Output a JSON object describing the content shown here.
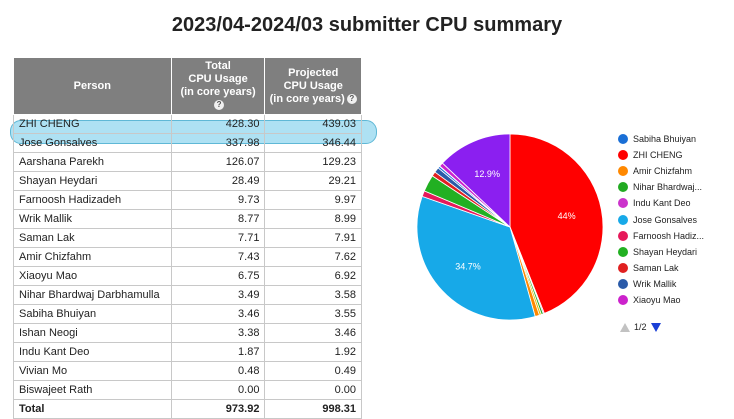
{
  "title": "2023/04-2024/03 submitter CPU summary",
  "table": {
    "headers": {
      "person": "Person",
      "total": [
        "Total",
        "CPU Usage",
        "(in core years)"
      ],
      "projected": [
        "Projected",
        "CPU Usage",
        "(in core years)"
      ]
    },
    "rows": [
      {
        "person": "ZHI CHENG",
        "total": "428.30",
        "projected": "439.03"
      },
      {
        "person": "Jose Gonsalves",
        "total": "337.98",
        "projected": "346.44"
      },
      {
        "person": "Aarshana Parekh",
        "total": "126.07",
        "projected": "129.23"
      },
      {
        "person": "Shayan Heydari",
        "total": "28.49",
        "projected": "29.21"
      },
      {
        "person": "Farnoosh Hadizadeh",
        "total": "9.73",
        "projected": "9.97"
      },
      {
        "person": "Wrik Mallik",
        "total": "8.77",
        "projected": "8.99"
      },
      {
        "person": "Saman Lak",
        "total": "7.71",
        "projected": "7.91"
      },
      {
        "person": "Amir Chizfahm",
        "total": "7.43",
        "projected": "7.62"
      },
      {
        "person": "Xiaoyu Mao",
        "total": "6.75",
        "projected": "6.92"
      },
      {
        "person": "Nihar Bhardwaj Darbhamulla",
        "total": "3.49",
        "projected": "3.58"
      },
      {
        "person": "Sabiha Bhuiyan",
        "total": "3.46",
        "projected": "3.55"
      },
      {
        "person": "Ishan Neogi",
        "total": "3.38",
        "projected": "3.46"
      },
      {
        "person": "Indu Kant Deo",
        "total": "1.87",
        "projected": "1.92"
      },
      {
        "person": "Vivian Mo",
        "total": "0.48",
        "projected": "0.49"
      },
      {
        "person": "Biswajeet Rath",
        "total": "0.00",
        "projected": "0.00"
      }
    ],
    "total_row": {
      "person": "Total",
      "total": "973.92",
      "projected": "998.31"
    },
    "highlighted_row": "Jose Gonsalves"
  },
  "chart_data": {
    "type": "pie",
    "slices": [
      {
        "name": "ZHI CHENG",
        "value": 428.3,
        "color": "#ff0000",
        "label": "44%"
      },
      {
        "name": "Indu Kant Deo",
        "value": 1.87,
        "color": "#cc33cc",
        "label": ""
      },
      {
        "name": "Biswajeet Rath",
        "value": 0.0,
        "color": "#999999",
        "label": ""
      },
      {
        "name": "Nihar Bhardwaj Darbhamulla",
        "value": 3.49,
        "color": "#22aa22",
        "label": ""
      },
      {
        "name": "Ishan Neogi",
        "value": 3.38,
        "color": "#e6b800",
        "label": ""
      },
      {
        "name": "Amir Chizfahm",
        "value": 7.43,
        "color": "#ff8800",
        "label": ""
      },
      {
        "name": "Jose Gonsalves",
        "value": 337.98,
        "color": "#17a9e8",
        "label": "34.7%"
      },
      {
        "name": "Farnoosh Hadizadeh",
        "value": 9.73,
        "color": "#e6195a",
        "label": ""
      },
      {
        "name": "Shayan Heydari",
        "value": 28.49,
        "color": "#22b022",
        "label": ""
      },
      {
        "name": "Saman Lak",
        "value": 7.71,
        "color": "#e02020",
        "label": ""
      },
      {
        "name": "Wrik Mallik",
        "value": 8.77,
        "color": "#2a5aa8",
        "label": ""
      },
      {
        "name": "Sabiha Bhuiyan",
        "value": 3.46,
        "color": "#1a6fd6",
        "label": ""
      },
      {
        "name": "Vivian Mo",
        "value": 0.48,
        "color": "#66cccc",
        "label": ""
      },
      {
        "name": "Xiaoyu Mao",
        "value": 6.75,
        "color": "#cc22cc",
        "label": ""
      },
      {
        "name": "Aarshana Parekh",
        "value": 126.07,
        "color": "#8b1ff0",
        "label": "12.9%"
      }
    ],
    "legend": [
      {
        "name": "Sabiha Bhuiyan",
        "color": "#1a6fd6"
      },
      {
        "name": "ZHI CHENG",
        "color": "#ff0000"
      },
      {
        "name": "Amir Chizfahm",
        "color": "#ff8800"
      },
      {
        "name": "Nihar Bhardwaj...",
        "color": "#22aa22"
      },
      {
        "name": "Indu Kant Deo",
        "color": "#cc33cc"
      },
      {
        "name": "Jose Gonsalves",
        "color": "#17a9e8"
      },
      {
        "name": "Farnoosh Hadiz...",
        "color": "#e6195a"
      },
      {
        "name": "Shayan Heydari",
        "color": "#22b022"
      },
      {
        "name": "Saman Lak",
        "color": "#e02020"
      },
      {
        "name": "Wrik Mallik",
        "color": "#2a5aa8"
      },
      {
        "name": "Xiaoyu Mao",
        "color": "#cc22cc"
      }
    ],
    "legend_placement": "right",
    "legend_page": "1/2"
  }
}
